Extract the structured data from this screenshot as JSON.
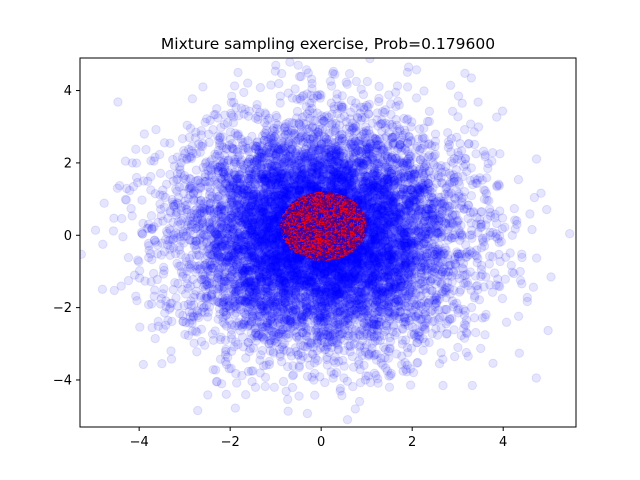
{
  "chart_data": {
    "type": "scatter",
    "title": "Mixture sampling exercise, Prob=0.179600",
    "xlabel": "",
    "ylabel": "",
    "xlim": [
      -5.3,
      5.6
    ],
    "ylim": [
      -5.3,
      4.9
    ],
    "x_ticks": [
      -4,
      -2,
      0,
      2,
      4
    ],
    "y_ticks": [
      -4,
      -2,
      0,
      2,
      4
    ],
    "x_tick_labels": [
      "−4",
      "−2",
      "0",
      "2",
      "4"
    ],
    "y_tick_labels": [
      "−4",
      "−2",
      "0",
      "2",
      "4"
    ],
    "grid": false,
    "legend": "none",
    "series": [
      {
        "distribution": "bivariate normal",
        "mean": [
          0,
          0
        ],
        "std": [
          1.5,
          1.5
        ],
        "approx_count": 10000,
        "marker": "circle",
        "color": "#0000ff",
        "alpha": 0.1,
        "extreme_points": [
          [
            -4.8,
            -0.25
          ],
          [
            -4.3,
            2.05
          ],
          [
            -4.15,
            2.0
          ],
          [
            -4.1,
            -1.1
          ],
          [
            -3.9,
            1.5
          ],
          [
            -3.5,
            -3.55
          ],
          [
            -3.3,
            -3.2
          ],
          [
            -2.6,
            4.1
          ],
          [
            -2.3,
            -4.05
          ],
          [
            -1.7,
            3.95
          ],
          [
            -1.5,
            -3.75
          ],
          [
            -0.3,
            -3.9
          ],
          [
            0.3,
            4.45
          ],
          [
            0.75,
            -4.8
          ],
          [
            1.5,
            -4.2
          ],
          [
            1.9,
            4.1
          ],
          [
            2.6,
            -3.55
          ],
          [
            3.1,
            3.65
          ],
          [
            3.3,
            4.35
          ],
          [
            3.6,
            -2.75
          ],
          [
            3.75,
            2.05
          ],
          [
            3.9,
            -1.4
          ],
          [
            4.2,
            0.0
          ],
          [
            4.3,
            0.3
          ],
          [
            5.05,
            -1.15
          ]
        ]
      },
      {
        "region": "circle",
        "center": [
          0.05,
          0.25
        ],
        "radius": 0.95,
        "marker": "point",
        "colors": [
          "#ff0000",
          "#0000ff"
        ]
      }
    ]
  }
}
